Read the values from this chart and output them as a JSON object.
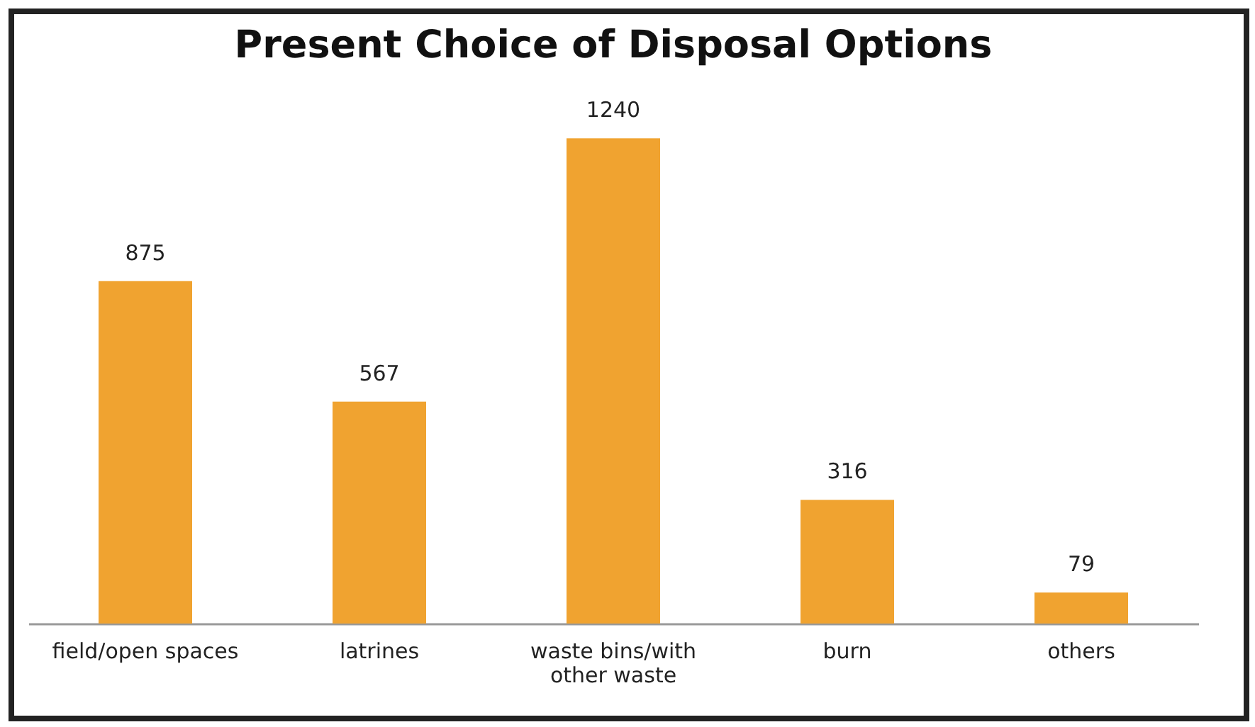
{
  "chart_data": {
    "type": "bar",
    "title": "Present Choice of Disposal Options",
    "categories": [
      "field/open spaces",
      "latrines",
      "waste bins/with other waste",
      "burn",
      "others"
    ],
    "values": [
      875,
      567,
      1240,
      316,
      79
    ],
    "color": "#f0a330",
    "data_labels": true,
    "grid": false,
    "tick_labels": "x"
  }
}
